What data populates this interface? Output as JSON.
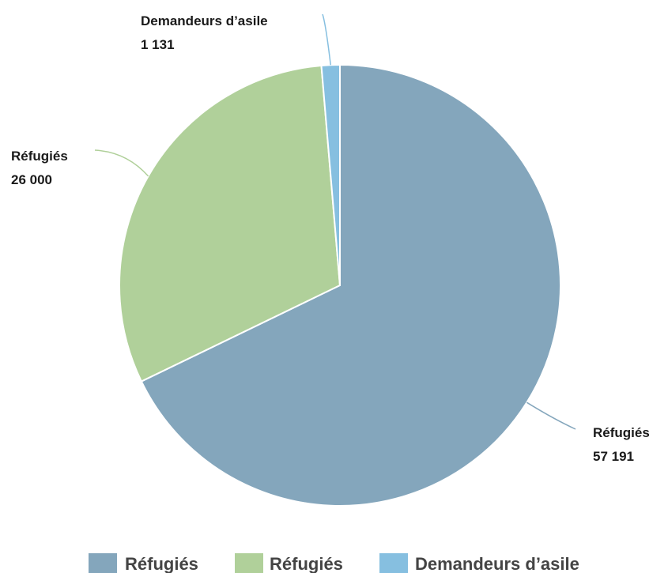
{
  "chart_data": {
    "type": "pie",
    "start_angle_deg": 0,
    "direction": "clockwise",
    "legend_position": "bottom",
    "slices": [
      {
        "label": "Réfugiés",
        "value": 57191,
        "value_label": "57 191",
        "color": "#84a6bc"
      },
      {
        "label": "Réfugiés",
        "value": 26000,
        "value_label": "26 000",
        "color": "#b0d09a"
      },
      {
        "label": "Demandeurs d’asile",
        "value": 1131,
        "value_label": "1 131",
        "color": "#86bfe0"
      }
    ]
  }
}
